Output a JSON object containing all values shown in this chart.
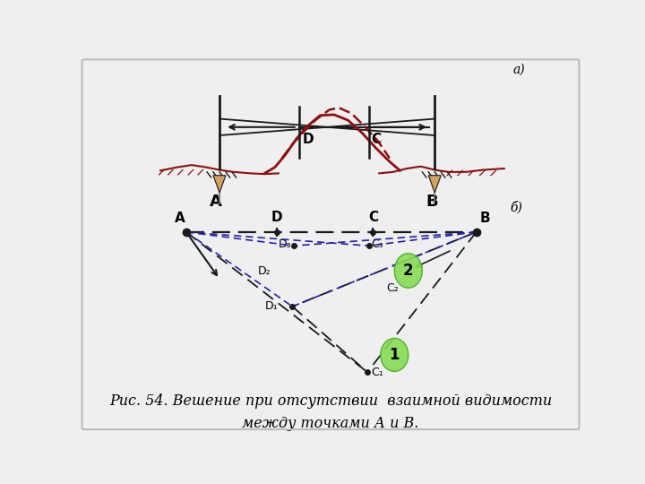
{
  "background_color": "#efefef",
  "title": "Рис. 54. Вешение при отсутствии  взаимной видимости\nмежду точками А и В.",
  "section_a": "а)",
  "section_b": "б)",
  "dark_color": "#1a1a1a",
  "red_color": "#8B1010",
  "blue_color": "#2222aa",
  "green_fill": "#88dd55",
  "green_edge": "#44aa22",
  "stake_color": "#d4a060",
  "gray_color": "#888888"
}
